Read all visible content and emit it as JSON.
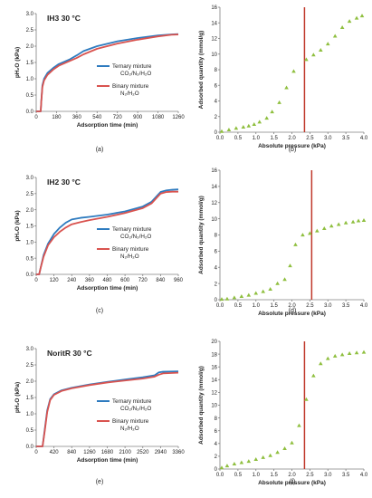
{
  "chart_data": [
    {
      "id": "a",
      "type": "line",
      "panel_label": "(a)",
      "annotation": "IH3 30 °C",
      "xlabel": "Adsorption time (min)",
      "ylabel": "pH₂O (kPa)",
      "xlim": [
        0,
        1260
      ],
      "xticks": [
        0,
        180,
        360,
        540,
        720,
        900,
        1080,
        1260
      ],
      "ylim": [
        0,
        3.0
      ],
      "yticks": [
        0.0,
        0.5,
        1.0,
        1.5,
        2.0,
        2.5,
        3.0
      ],
      "grid": false,
      "legend_position": "right",
      "series": [
        {
          "name": "Ternary mixture",
          "subtitle": "CO₂/N₂/H₂O",
          "color": "#2e7bbf",
          "x": [
            0,
            40,
            45,
            55,
            70,
            100,
            150,
            200,
            300,
            360,
            420,
            540,
            720,
            900,
            1080,
            1200,
            1260
          ],
          "y": [
            0,
            0,
            0.3,
            0.8,
            1.0,
            1.18,
            1.33,
            1.45,
            1.6,
            1.72,
            1.85,
            2.0,
            2.15,
            2.25,
            2.33,
            2.36,
            2.37
          ]
        },
        {
          "name": "Binary mixture",
          "subtitle": "N₂/H₂O",
          "color": "#d9534f",
          "x": [
            0,
            40,
            45,
            55,
            70,
            100,
            150,
            200,
            300,
            360,
            420,
            540,
            720,
            900,
            1080,
            1200,
            1260
          ],
          "y": [
            0,
            0,
            0.3,
            0.75,
            0.95,
            1.12,
            1.28,
            1.4,
            1.55,
            1.64,
            1.75,
            1.92,
            2.08,
            2.2,
            2.3,
            2.35,
            2.36
          ]
        }
      ]
    },
    {
      "id": "b",
      "type": "scatter",
      "panel_label": "(b)",
      "xlabel": "Absolute pressure (kPa)",
      "ylabel": "Adsorbed quantity (mmol/g)",
      "xlim": [
        0,
        4.0
      ],
      "xticks": [
        0.0,
        0.5,
        1.0,
        1.5,
        2.0,
        2.5,
        3.0,
        3.5,
        4.0
      ],
      "ylim": [
        0,
        16
      ],
      "yticks": [
        0,
        2,
        4,
        6,
        8,
        10,
        12,
        14,
        16
      ],
      "grid": false,
      "vline": {
        "x": 2.35,
        "color": "#c0392b"
      },
      "marker_color": "#8fbf3f",
      "points": [
        [
          0.05,
          0.1
        ],
        [
          0.25,
          0.3
        ],
        [
          0.45,
          0.5
        ],
        [
          0.65,
          0.65
        ],
        [
          0.8,
          0.8
        ],
        [
          0.95,
          1.0
        ],
        [
          1.1,
          1.3
        ],
        [
          1.3,
          1.8
        ],
        [
          1.45,
          2.6
        ],
        [
          1.65,
          3.8
        ],
        [
          1.85,
          5.7
        ],
        [
          2.05,
          7.8
        ],
        [
          2.4,
          9.3
        ],
        [
          2.6,
          9.9
        ],
        [
          2.8,
          10.5
        ],
        [
          3.0,
          11.3
        ],
        [
          3.2,
          12.3
        ],
        [
          3.4,
          13.4
        ],
        [
          3.6,
          14.2
        ],
        [
          3.8,
          14.6
        ],
        [
          3.95,
          14.9
        ]
      ]
    },
    {
      "id": "c",
      "type": "line",
      "panel_label": "(c)",
      "annotation": "IH2 30 °C",
      "xlabel": "Adsorption time (min)",
      "ylabel": "pH₂O (kPa)",
      "xlim": [
        0,
        960
      ],
      "xticks": [
        0,
        120,
        240,
        360,
        480,
        600,
        720,
        840,
        960
      ],
      "ylim": [
        0,
        3.0
      ],
      "yticks": [
        0.0,
        0.5,
        1.0,
        1.5,
        2.0,
        2.5,
        3.0
      ],
      "grid": false,
      "legend_position": "bottom-right",
      "series": [
        {
          "name": "Ternary mixture",
          "subtitle": "CO₂/N₂/H₂O",
          "color": "#2e7bbf",
          "x": [
            0,
            20,
            30,
            50,
            80,
            120,
            160,
            200,
            240,
            300,
            360,
            480,
            600,
            720,
            780,
            820,
            840,
            880,
            920,
            960
          ],
          "y": [
            0,
            0,
            0.2,
            0.6,
            0.95,
            1.25,
            1.45,
            1.6,
            1.7,
            1.75,
            1.78,
            1.85,
            1.95,
            2.1,
            2.25,
            2.45,
            2.55,
            2.6,
            2.62,
            2.63
          ]
        },
        {
          "name": "Binary mixture",
          "subtitle": "N₂/H₂O",
          "color": "#d9534f",
          "x": [
            0,
            20,
            30,
            50,
            80,
            120,
            160,
            200,
            240,
            300,
            360,
            480,
            600,
            720,
            780,
            820,
            840,
            880,
            920,
            960
          ],
          "y": [
            0,
            0,
            0.2,
            0.55,
            0.9,
            1.15,
            1.32,
            1.45,
            1.55,
            1.62,
            1.68,
            1.78,
            1.9,
            2.05,
            2.2,
            2.4,
            2.5,
            2.55,
            2.56,
            2.56
          ]
        }
      ]
    },
    {
      "id": "d",
      "type": "scatter",
      "panel_label": "(d)",
      "xlabel": "Absolute pressure (kPa)",
      "ylabel": "Adsorbed quantity (mmol/g)",
      "xlim": [
        0,
        4.0
      ],
      "xticks": [
        0.0,
        0.5,
        1.0,
        1.5,
        2.0,
        2.5,
        3.0,
        3.5,
        4.0
      ],
      "ylim": [
        0,
        16
      ],
      "yticks": [
        0,
        2,
        4,
        6,
        8,
        10,
        12,
        14,
        16
      ],
      "grid": false,
      "vline": {
        "x": 2.55,
        "color": "#c0392b"
      },
      "marker_color": "#8fbf3f",
      "points": [
        [
          0.05,
          0.05
        ],
        [
          0.2,
          0.1
        ],
        [
          0.4,
          0.25
        ],
        [
          0.6,
          0.4
        ],
        [
          0.8,
          0.55
        ],
        [
          1.0,
          0.8
        ],
        [
          1.2,
          1.0
        ],
        [
          1.4,
          1.3
        ],
        [
          1.6,
          2.0
        ],
        [
          1.8,
          2.5
        ],
        [
          1.95,
          4.2
        ],
        [
          2.1,
          6.8
        ],
        [
          2.3,
          8.0
        ],
        [
          2.5,
          8.2
        ],
        [
          2.7,
          8.5
        ],
        [
          2.9,
          8.8
        ],
        [
          3.1,
          9.1
        ],
        [
          3.3,
          9.3
        ],
        [
          3.5,
          9.5
        ],
        [
          3.7,
          9.6
        ],
        [
          3.85,
          9.75
        ],
        [
          4.0,
          9.8
        ]
      ]
    },
    {
      "id": "e",
      "type": "line",
      "panel_label": "(e)",
      "annotation": "NoritR 30 °C",
      "xlabel": "Adsorption time (min)",
      "ylabel": "pH₂O (kPa)",
      "xlim": [
        0,
        3360
      ],
      "xticks": [
        0,
        420,
        840,
        1260,
        1680,
        2100,
        2520,
        2940,
        3360
      ],
      "ylim": [
        0,
        3.0
      ],
      "yticks": [
        0.0,
        0.5,
        1.0,
        1.5,
        2.0,
        2.5,
        3.0
      ],
      "grid": false,
      "legend_position": "bottom-right",
      "series": [
        {
          "name": "Ternary mixture",
          "subtitle": "CO₂/N₂/H₂O",
          "color": "#2e7bbf",
          "x": [
            0,
            150,
            200,
            260,
            330,
            420,
            600,
            840,
            1260,
            1680,
            2100,
            2520,
            2800,
            2900,
            3000,
            3360
          ],
          "y": [
            0,
            0,
            0.5,
            1.1,
            1.45,
            1.6,
            1.72,
            1.8,
            1.9,
            1.98,
            2.05,
            2.12,
            2.18,
            2.27,
            2.29,
            2.3
          ]
        },
        {
          "name": "Binary mixture",
          "subtitle": "N₂/H₂O",
          "color": "#d9534f",
          "x": [
            0,
            150,
            200,
            260,
            330,
            420,
            600,
            840,
            1260,
            1680,
            2100,
            2520,
            2800,
            2900,
            3000,
            3360
          ],
          "y": [
            0,
            0,
            0.45,
            1.05,
            1.42,
            1.58,
            1.7,
            1.78,
            1.88,
            1.96,
            2.02,
            2.08,
            2.14,
            2.2,
            2.24,
            2.26
          ]
        }
      ]
    },
    {
      "id": "f",
      "type": "scatter",
      "panel_label": "(f)",
      "xlabel": "Absolute pressure (kPa)",
      "ylabel": "Adsorbed quantity (mmol/g)",
      "xlim": [
        0,
        4.0
      ],
      "xticks": [
        0.0,
        0.5,
        1.0,
        1.5,
        2.0,
        2.5,
        3.0,
        3.5,
        4.0
      ],
      "ylim": [
        0,
        20
      ],
      "yticks": [
        0,
        2,
        4,
        6,
        8,
        10,
        12,
        14,
        16,
        18,
        20
      ],
      "grid": false,
      "vline": {
        "x": 2.35,
        "color": "#c0392b"
      },
      "marker_color": "#8fbf3f",
      "points": [
        [
          0.05,
          0.2
        ],
        [
          0.2,
          0.5
        ],
        [
          0.4,
          0.8
        ],
        [
          0.6,
          1.0
        ],
        [
          0.8,
          1.2
        ],
        [
          1.0,
          1.5
        ],
        [
          1.2,
          1.8
        ],
        [
          1.4,
          2.1
        ],
        [
          1.6,
          2.6
        ],
        [
          1.8,
          3.2
        ],
        [
          2.0,
          4.1
        ],
        [
          2.2,
          6.8
        ],
        [
          2.4,
          10.9
        ],
        [
          2.6,
          14.6
        ],
        [
          2.8,
          16.5
        ],
        [
          3.0,
          17.3
        ],
        [
          3.2,
          17.7
        ],
        [
          3.4,
          17.9
        ],
        [
          3.6,
          18.1
        ],
        [
          3.8,
          18.2
        ],
        [
          4.0,
          18.3
        ]
      ]
    }
  ]
}
